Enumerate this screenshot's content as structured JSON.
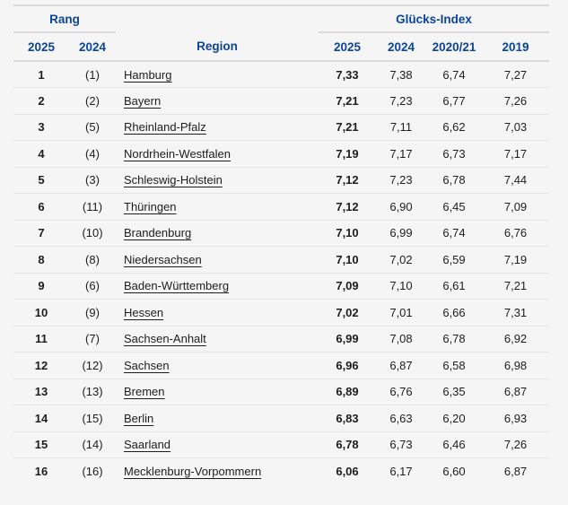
{
  "colors": {
    "header_blue": "#0b4596",
    "text_black": "#1d1d1d",
    "border_light": "#e4e4e7",
    "border_group": "#dbdbde",
    "page_background": "#f5f5f6"
  },
  "table": {
    "groups": {
      "rang": "Rang",
      "gluecks_index": "Glücks-Index"
    },
    "columns": [
      "2025",
      "2024",
      "Region",
      "2025",
      "2024",
      "2020/21",
      "2019"
    ],
    "rows": [
      {
        "rank_2025": "1",
        "rank_2024": "(1)",
        "region": "Hamburg",
        "gi_2025": "7,33",
        "gi_2024": "7,38",
        "gi_2020_21": "6,74",
        "gi_2019": "7,27"
      },
      {
        "rank_2025": "2",
        "rank_2024": "(2)",
        "region": "Bayern",
        "gi_2025": "7,21",
        "gi_2024": "7,23",
        "gi_2020_21": "6,77",
        "gi_2019": "7,26"
      },
      {
        "rank_2025": "3",
        "rank_2024": "(5)",
        "region": "Rheinland-Pfalz",
        "gi_2025": "7,21",
        "gi_2024": "7,11",
        "gi_2020_21": "6,62",
        "gi_2019": "7,03"
      },
      {
        "rank_2025": "4",
        "rank_2024": "(4)",
        "region": "Nordrhein-Westfalen",
        "gi_2025": "7,19",
        "gi_2024": "7,17",
        "gi_2020_21": "6,73",
        "gi_2019": "7,17"
      },
      {
        "rank_2025": "5",
        "rank_2024": "(3)",
        "region": "Schleswig-Holstein",
        "gi_2025": "7,12",
        "gi_2024": "7,23",
        "gi_2020_21": "6,78",
        "gi_2019": "7,44"
      },
      {
        "rank_2025": "6",
        "rank_2024": "(11)",
        "region": "Thüringen",
        "gi_2025": "7,12",
        "gi_2024": "6,90",
        "gi_2020_21": "6,45",
        "gi_2019": "7,09"
      },
      {
        "rank_2025": "7",
        "rank_2024": "(10)",
        "region": "Brandenburg",
        "gi_2025": "7,10",
        "gi_2024": "6,99",
        "gi_2020_21": "6,74",
        "gi_2019": "6,76"
      },
      {
        "rank_2025": "8",
        "rank_2024": "(8)",
        "region": "Niedersachsen",
        "gi_2025": "7,10",
        "gi_2024": "7,02",
        "gi_2020_21": "6,59",
        "gi_2019": "7,19"
      },
      {
        "rank_2025": "9",
        "rank_2024": "(6)",
        "region": "Baden-Württemberg",
        "gi_2025": "7,09",
        "gi_2024": "7,10",
        "gi_2020_21": "6,61",
        "gi_2019": "7,21"
      },
      {
        "rank_2025": "10",
        "rank_2024": "(9)",
        "region": "Hessen",
        "gi_2025": "7,02",
        "gi_2024": "7,01",
        "gi_2020_21": "6,66",
        "gi_2019": "7,31"
      },
      {
        "rank_2025": "11",
        "rank_2024": "(7)",
        "region": "Sachsen-Anhalt",
        "gi_2025": "6,99",
        "gi_2024": "7,08",
        "gi_2020_21": "6,78",
        "gi_2019": "6,92"
      },
      {
        "rank_2025": "12",
        "rank_2024": "(12)",
        "region": "Sachsen",
        "gi_2025": "6,96",
        "gi_2024": "6,87",
        "gi_2020_21": "6,58",
        "gi_2019": "6,98"
      },
      {
        "rank_2025": "13",
        "rank_2024": "(13)",
        "region": "Bremen",
        "gi_2025": "6,89",
        "gi_2024": "6,76",
        "gi_2020_21": "6,35",
        "gi_2019": "6,87"
      },
      {
        "rank_2025": "14",
        "rank_2024": "(15)",
        "region": "Berlin",
        "gi_2025": "6,83",
        "gi_2024": "6,63",
        "gi_2020_21": "6,20",
        "gi_2019": "6,93"
      },
      {
        "rank_2025": "15",
        "rank_2024": "(14)",
        "region": "Saarland",
        "gi_2025": "6,78",
        "gi_2024": "6,73",
        "gi_2020_21": "6,46",
        "gi_2019": "7,26"
      },
      {
        "rank_2025": "16",
        "rank_2024": "(16)",
        "region": "Mecklenburg-Vorpommern",
        "gi_2025": "6,06",
        "gi_2024": "6,17",
        "gi_2020_21": "6,60",
        "gi_2019": "6,87"
      }
    ]
  }
}
